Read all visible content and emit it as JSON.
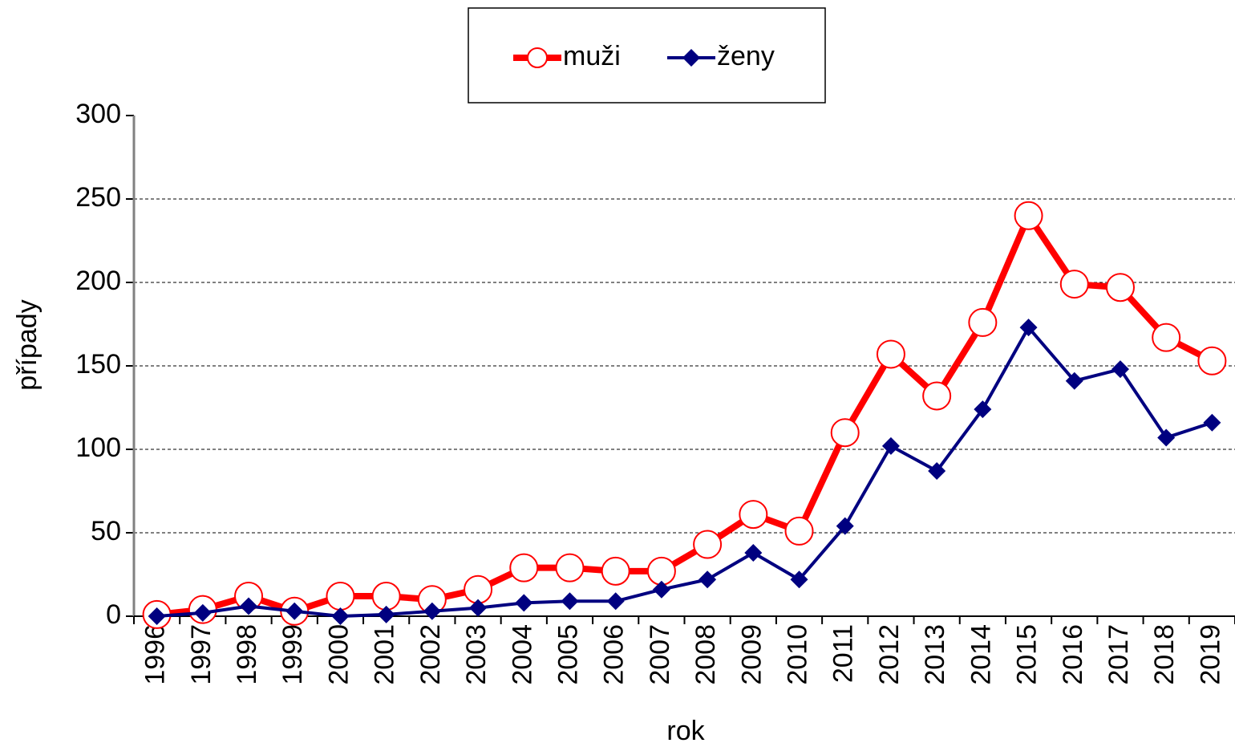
{
  "chart_data": {
    "type": "line",
    "xlabel": "rok",
    "ylabel": "případy",
    "categories": [
      "1996",
      "1997",
      "1998",
      "1999",
      "2000",
      "2001",
      "2002",
      "2003",
      "2004",
      "2005",
      "2006",
      "2007",
      "2008",
      "2009",
      "2010",
      "2011",
      "2012",
      "2013",
      "2014",
      "2015",
      "2016",
      "2017",
      "2018",
      "2019"
    ],
    "series": [
      {
        "name": "muži",
        "color": "#ff0000",
        "marker": "circle",
        "values": [
          1,
          4,
          12,
          3,
          12,
          12,
          10,
          16,
          29,
          29,
          27,
          27,
          43,
          61,
          51,
          110,
          157,
          132,
          176,
          240,
          199,
          197,
          167,
          153
        ]
      },
      {
        "name": "ženy",
        "color": "#000080",
        "marker": "diamond",
        "values": [
          0,
          2,
          6,
          3,
          0,
          1,
          3,
          5,
          8,
          9,
          9,
          16,
          22,
          38,
          22,
          54,
          102,
          87,
          124,
          173,
          141,
          148,
          107,
          116
        ]
      }
    ],
    "ylim": [
      0,
      300
    ],
    "yticks": [
      0,
      50,
      100,
      150,
      200,
      250,
      300
    ],
    "grid": true,
    "legend": "top"
  }
}
